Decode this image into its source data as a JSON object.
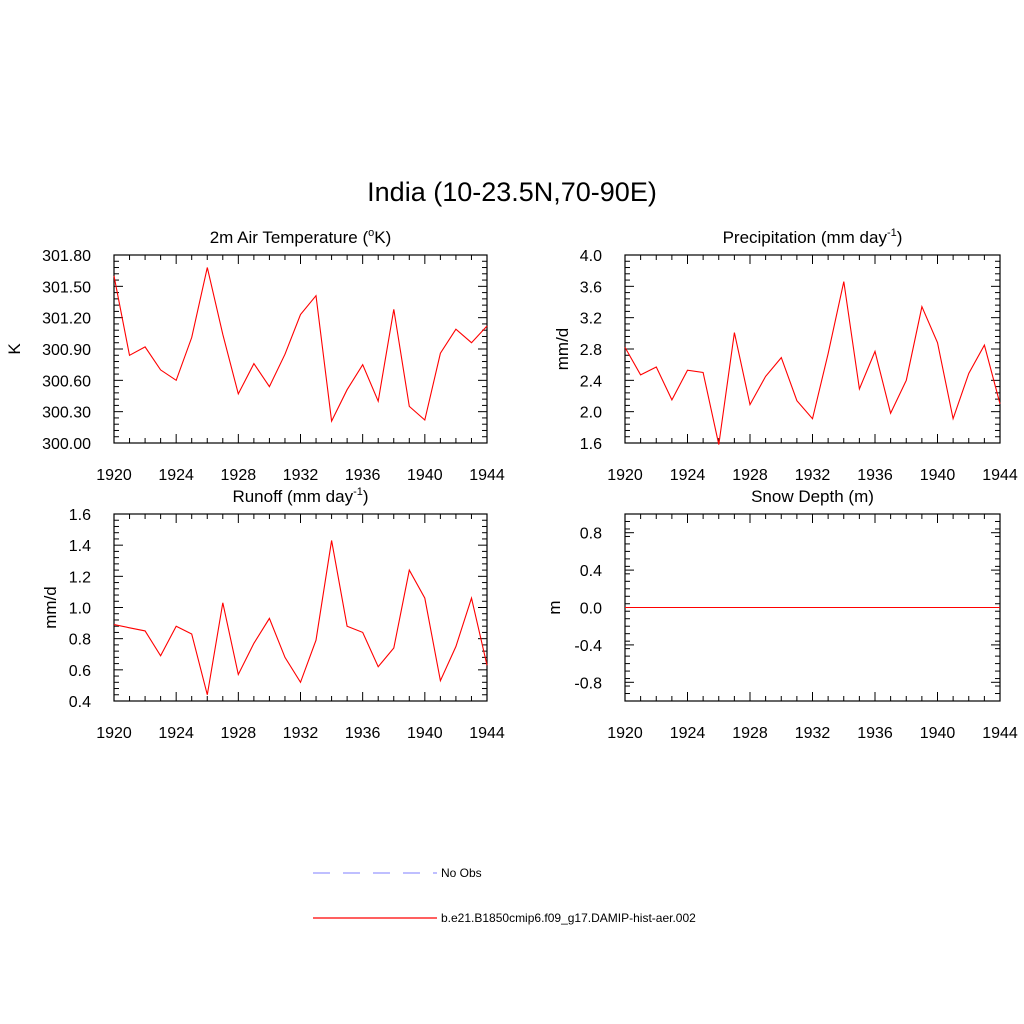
{
  "figure": {
    "title": "India (10-23.5N,70-90E)"
  },
  "colors": {
    "model_line": "#ff0000",
    "obs_line": "#9999ff",
    "axes": "#000000"
  },
  "chart_data": [
    {
      "type": "line",
      "title_main": "2m Air Temperature (",
      "title_sup": "o",
      "title_tail": "K)",
      "ylabel": "K",
      "xlim": [
        1920,
        1944
      ],
      "ylim": [
        300.0,
        301.8
      ],
      "xticks": [
        1920,
        1924,
        1928,
        1932,
        1936,
        1940,
        1944
      ],
      "yticks": [
        300.0,
        300.3,
        300.6,
        300.9,
        301.2,
        301.5,
        301.8
      ],
      "ytick_labels": [
        "300.00",
        "300.30",
        "300.60",
        "300.90",
        "301.20",
        "301.50",
        "301.80"
      ],
      "series": [
        {
          "name": "b.e21.B1850cmip6.f09_g17.DAMIP-hist-aer.002",
          "x": [
            1920,
            1921,
            1922,
            1923,
            1924,
            1925,
            1926,
            1927,
            1928,
            1929,
            1930,
            1931,
            1932,
            1933,
            1934,
            1935,
            1936,
            1937,
            1938,
            1939,
            1940,
            1941,
            1942,
            1943,
            1944
          ],
          "y": [
            301.6,
            300.84,
            300.92,
            300.7,
            300.6,
            301.01,
            301.68,
            301.04,
            300.47,
            300.76,
            300.54,
            300.85,
            301.23,
            301.41,
            300.21,
            300.51,
            300.75,
            300.4,
            301.28,
            300.35,
            300.22,
            300.86,
            301.09,
            300.96,
            301.12
          ]
        }
      ]
    },
    {
      "type": "line",
      "title_main": "Precipitation (mm day",
      "title_sup": "-1",
      "title_tail": ")",
      "ylabel": "mm/d",
      "xlim": [
        1920,
        1944
      ],
      "ylim": [
        1.6,
        4.0
      ],
      "xticks": [
        1920,
        1924,
        1928,
        1932,
        1936,
        1940,
        1944
      ],
      "yticks": [
        1.6,
        2.0,
        2.4,
        2.8,
        3.2,
        3.6,
        4.0
      ],
      "ytick_labels": [
        "1.6",
        "2.0",
        "2.4",
        "2.8",
        "3.2",
        "3.6",
        "4.0"
      ],
      "series": [
        {
          "name": "b.e21.B1850cmip6.f09_g17.DAMIP-hist-aer.002",
          "x": [
            1920,
            1921,
            1922,
            1923,
            1924,
            1925,
            1926,
            1927,
            1928,
            1929,
            1930,
            1931,
            1932,
            1933,
            1934,
            1935,
            1936,
            1937,
            1938,
            1939,
            1940,
            1941,
            1942,
            1943,
            1944
          ],
          "y": [
            2.82,
            2.47,
            2.57,
            2.15,
            2.53,
            2.5,
            1.58,
            3.01,
            2.09,
            2.45,
            2.69,
            2.14,
            1.91,
            2.74,
            3.66,
            2.29,
            2.77,
            1.98,
            2.4,
            3.34,
            2.88,
            1.91,
            2.49,
            2.85,
            2.1
          ]
        }
      ]
    },
    {
      "type": "line",
      "title_main": "Runoff (mm day",
      "title_sup": "-1",
      "title_tail": ")",
      "ylabel": "mm/d",
      "xlim": [
        1920,
        1944
      ],
      "ylim": [
        0.4,
        1.6
      ],
      "xticks": [
        1920,
        1924,
        1928,
        1932,
        1936,
        1940,
        1944
      ],
      "yticks": [
        0.4,
        0.6,
        0.8,
        1.0,
        1.2,
        1.4,
        1.6
      ],
      "ytick_labels": [
        "0.4",
        "0.6",
        "0.8",
        "1.0",
        "1.2",
        "1.4",
        "1.6"
      ],
      "series": [
        {
          "name": "b.e21.B1850cmip6.f09_g17.DAMIP-hist-aer.002",
          "x": [
            1920,
            1921,
            1922,
            1923,
            1924,
            1925,
            1926,
            1927,
            1928,
            1929,
            1930,
            1931,
            1932,
            1933,
            1934,
            1935,
            1936,
            1937,
            1938,
            1939,
            1940,
            1941,
            1942,
            1943,
            1944
          ],
          "y": [
            0.89,
            0.87,
            0.85,
            0.69,
            0.88,
            0.83,
            0.44,
            1.03,
            0.57,
            0.77,
            0.93,
            0.68,
            0.52,
            0.79,
            1.43,
            0.88,
            0.84,
            0.62,
            0.74,
            1.24,
            1.06,
            0.53,
            0.75,
            1.06,
            0.63
          ]
        }
      ]
    },
    {
      "type": "line",
      "title_main": "Snow Depth (m)",
      "title_sup": "",
      "title_tail": "",
      "ylabel": "m",
      "xlim": [
        1920,
        1944
      ],
      "ylim": [
        -1.0,
        1.0
      ],
      "xticks": [
        1920,
        1924,
        1928,
        1932,
        1936,
        1940,
        1944
      ],
      "yticks": [
        -0.8,
        -0.4,
        0.0,
        0.4,
        0.8
      ],
      "ytick_labels": [
        "-0.8",
        "-0.4",
        "0.0",
        "0.4",
        "0.8"
      ],
      "series": [
        {
          "name": "b.e21.B1850cmip6.f09_g17.DAMIP-hist-aer.002",
          "x": [
            1920,
            1944
          ],
          "y": [
            0.0,
            0.0
          ]
        }
      ]
    }
  ],
  "legend": {
    "entries": [
      {
        "label": "No Obs",
        "style": "dashed",
        "color": "#9999ff"
      },
      {
        "label": "b.e21.B1850cmip6.f09_g17.DAMIP-hist-aer.002",
        "style": "solid",
        "color": "#ff0000"
      }
    ]
  }
}
